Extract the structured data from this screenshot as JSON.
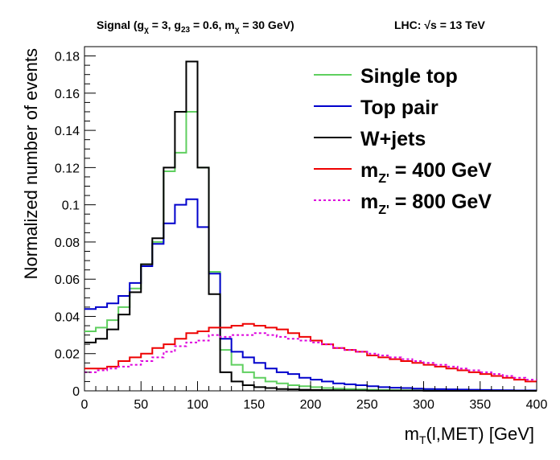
{
  "chart_data": {
    "type": "line",
    "header": {
      "signal_prefix": "Signal (g",
      "g_chi_sub": "χ",
      "g_chi_val": " = 3, g",
      "g23_sub": "23",
      "g23_val": " = 0.6, m",
      "m_chi_sub": "χ",
      "m_chi_val": " = 30 GeV)",
      "lhc_prefix": "LHC: ",
      "sqrt_symbol": "√",
      "lhc_suffix": "s = 13 TeV"
    },
    "xlabel": {
      "main": "m",
      "sub": "T",
      "rest": "(l,MET) [GeV]"
    },
    "ylabel": "Normalized number of events",
    "xlim": [
      0,
      400
    ],
    "ylim": [
      0,
      0.185
    ],
    "bin_width": 10,
    "x_ticks": [
      "0",
      "50",
      "100",
      "150",
      "200",
      "250",
      "300",
      "350",
      "400"
    ],
    "y_ticks": [
      "0",
      "0.02",
      "0.04",
      "0.06",
      "0.08",
      "0.1",
      "0.12",
      "0.14",
      "0.16",
      "0.18"
    ],
    "legend_position": "top-right",
    "series": [
      {
        "name": "Single top",
        "label_main": "Single top",
        "color": "#5fcf5f",
        "dashed": false,
        "values": [
          0.032,
          0.034,
          0.038,
          0.045,
          0.055,
          0.068,
          0.08,
          0.118,
          0.128,
          0.15,
          0.12,
          0.064,
          0.022,
          0.014,
          0.01,
          0.007,
          0.005,
          0.004,
          0.003,
          0.0025,
          0.002,
          0.0015,
          0.0012,
          0.001,
          0.0008,
          0.0006,
          0.0005,
          0.0004,
          0.0003,
          0.0002,
          0.0002,
          0.0001,
          0.0001,
          0.0001,
          0.0001,
          0.0001,
          0.0001,
          0.0,
          0.0,
          0.0
        ]
      },
      {
        "name": "Top pair",
        "label_main": "Top pair",
        "color": "#0000cc",
        "dashed": false,
        "values": [
          0.044,
          0.045,
          0.047,
          0.051,
          0.058,
          0.067,
          0.079,
          0.09,
          0.1,
          0.103,
          0.088,
          0.063,
          0.028,
          0.021,
          0.018,
          0.015,
          0.012,
          0.01,
          0.009,
          0.007,
          0.006,
          0.005,
          0.004,
          0.0035,
          0.003,
          0.0025,
          0.002,
          0.0017,
          0.0015,
          0.0012,
          0.001,
          0.0009,
          0.0008,
          0.0007,
          0.0006,
          0.0005,
          0.0004,
          0.0003,
          0.0002,
          0.0002
        ]
      },
      {
        "name": "W+jets",
        "label_main": "W+jets",
        "color": "#000000",
        "dashed": false,
        "values": [
          0.026,
          0.028,
          0.033,
          0.041,
          0.053,
          0.068,
          0.082,
          0.12,
          0.15,
          0.177,
          0.12,
          0.052,
          0.01,
          0.005,
          0.003,
          0.002,
          0.0015,
          0.001,
          0.0008,
          0.0006,
          0.0005,
          0.0004,
          0.0003,
          0.0002,
          0.0002,
          0.0001,
          0.0001,
          0.0001,
          0.0001,
          0.0001,
          0.0,
          0.0,
          0.0,
          0.0,
          0.0,
          0.0,
          0.0,
          0.0,
          0.0,
          0.0
        ]
      },
      {
        "name": "m_Z' = 400 GeV",
        "label_main": "m",
        "label_sub": "Z'",
        "label_rest": " = 400 GeV",
        "color": "#ee0000",
        "dashed": false,
        "values": [
          0.012,
          0.012,
          0.013,
          0.016,
          0.018,
          0.02,
          0.023,
          0.025,
          0.028,
          0.031,
          0.032,
          0.034,
          0.034,
          0.035,
          0.036,
          0.035,
          0.034,
          0.033,
          0.031,
          0.029,
          0.027,
          0.025,
          0.023,
          0.022,
          0.021,
          0.019,
          0.018,
          0.017,
          0.016,
          0.015,
          0.014,
          0.013,
          0.012,
          0.011,
          0.01,
          0.009,
          0.008,
          0.007,
          0.006,
          0.005
        ]
      },
      {
        "name": "m_Z' = 800 GeV",
        "label_main": "m",
        "label_sub": "Z'",
        "label_rest": " = 800 GeV",
        "color": "#dd00dd",
        "dashed": true,
        "values": [
          0.01,
          0.011,
          0.012,
          0.013,
          0.014,
          0.016,
          0.018,
          0.021,
          0.024,
          0.026,
          0.027,
          0.03,
          0.029,
          0.03,
          0.03,
          0.031,
          0.03,
          0.029,
          0.028,
          0.027,
          0.026,
          0.025,
          0.023,
          0.022,
          0.021,
          0.02,
          0.019,
          0.018,
          0.017,
          0.016,
          0.015,
          0.014,
          0.013,
          0.012,
          0.011,
          0.01,
          0.009,
          0.008,
          0.007,
          0.006
        ]
      }
    ]
  }
}
